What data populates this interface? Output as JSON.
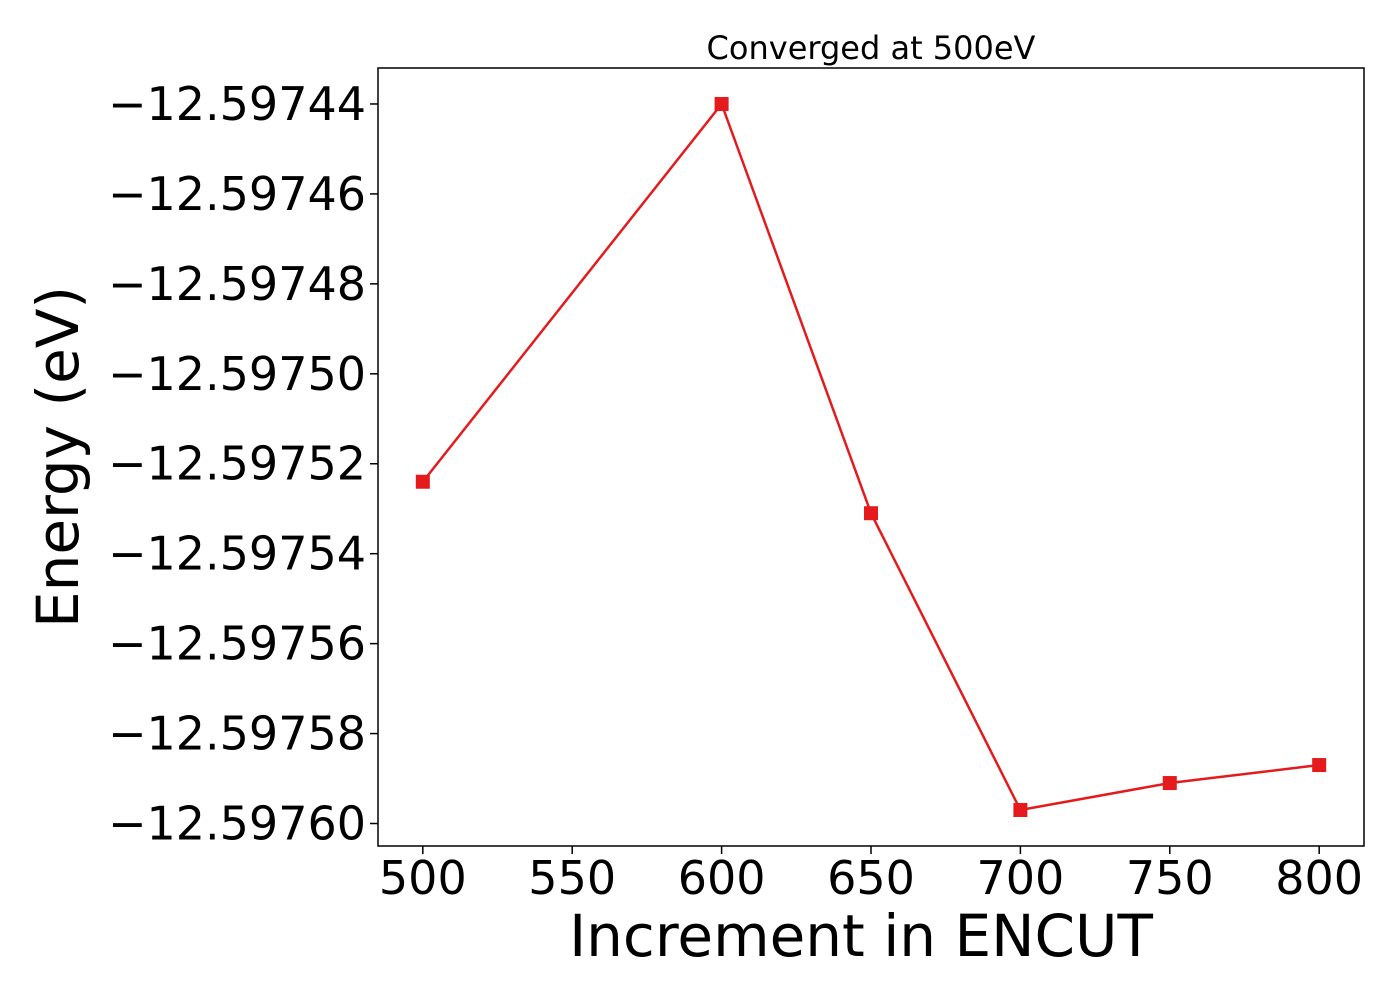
{
  "chart_data": {
    "type": "line",
    "title": "Converged at 500eV",
    "xlabel": "Increment in ENCUT",
    "ylabel": "Energy (eV)",
    "x": [
      500,
      600,
      650,
      700,
      750,
      800
    ],
    "series": [
      {
        "values": [
          -12.597524,
          -12.59744,
          -12.597531,
          -12.597597,
          -12.597591,
          -12.597587
        ],
        "color": "#e41a1c",
        "marker": "square"
      }
    ],
    "xticks": [
      500,
      550,
      600,
      650,
      700,
      750,
      800
    ],
    "xtick_labels": [
      "500",
      "550",
      "600",
      "650",
      "700",
      "750",
      "800"
    ],
    "yticks": [
      -12.59744,
      -12.59746,
      -12.59748,
      -12.5975,
      -12.59752,
      -12.59754,
      -12.59756,
      -12.59758,
      -12.5976
    ],
    "ytick_labels": [
      "−12.59744",
      "−12.59746",
      "−12.59748",
      "−12.59750",
      "−12.59752",
      "−12.59754",
      "−12.59756",
      "−12.59758",
      "−12.59760"
    ],
    "xlim": [
      485,
      815
    ],
    "ylim": [
      -12.597605,
      -12.597432
    ],
    "grid": false,
    "legend": "none"
  }
}
